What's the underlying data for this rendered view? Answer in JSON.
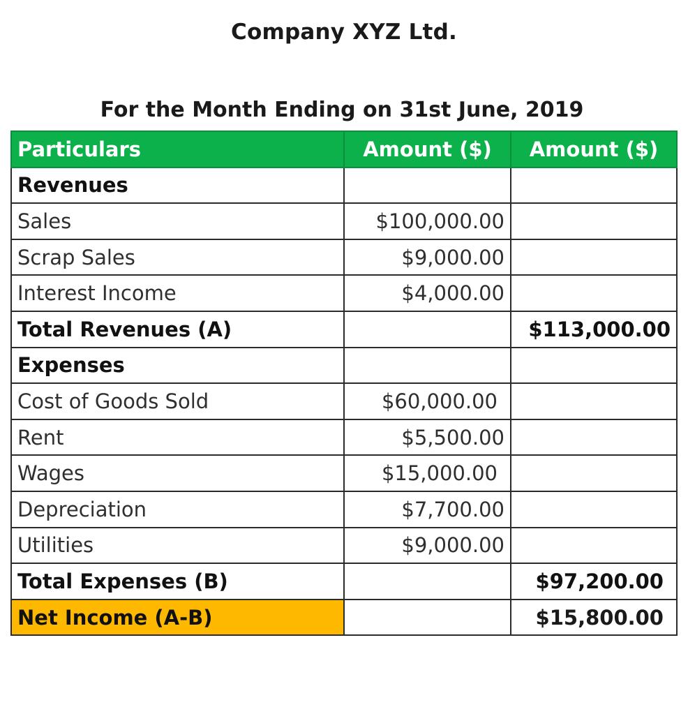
{
  "company": "Company XYZ Ltd.",
  "period": "For the Month Ending on 31st June, 2019",
  "colors": {
    "header_bg": "#0db14b",
    "net_income_bg": "#ffb800"
  },
  "table": {
    "headers": [
      "Particulars",
      "Amount ($)",
      "Amount ($)"
    ],
    "rows": [
      {
        "particular": "Revenues",
        "amount1": "",
        "amount2": ""
      },
      {
        "particular": "Sales",
        "amount1": "$100,000.00",
        "amount2": ""
      },
      {
        "particular": "Scrap Sales",
        "amount1": "$9,000.00",
        "amount2": ""
      },
      {
        "particular": "Interest Income",
        "amount1": "$4,000.00",
        "amount2": ""
      },
      {
        "particular": "Total Revenues (A)",
        "amount1": "",
        "amount2": "$113,000.00"
      },
      {
        "particular": "Expenses",
        "amount1": "",
        "amount2": ""
      },
      {
        "particular": "Cost of Goods Sold",
        "amount1": "$60,000.00",
        "amount2": ""
      },
      {
        "particular": "Rent",
        "amount1": "$5,500.00",
        "amount2": ""
      },
      {
        "particular": "Wages",
        "amount1": "$15,000.00",
        "amount2": ""
      },
      {
        "particular": "Depreciation",
        "amount1": "$7,700.00",
        "amount2": ""
      },
      {
        "particular": "Utilities",
        "amount1": "$9,000.00",
        "amount2": ""
      },
      {
        "particular": "Total Expenses (B)",
        "amount1": "",
        "amount2": "$97,200.00"
      },
      {
        "particular": "Net Income (A-B)",
        "amount1": "",
        "amount2": "$15,800.00"
      }
    ]
  }
}
